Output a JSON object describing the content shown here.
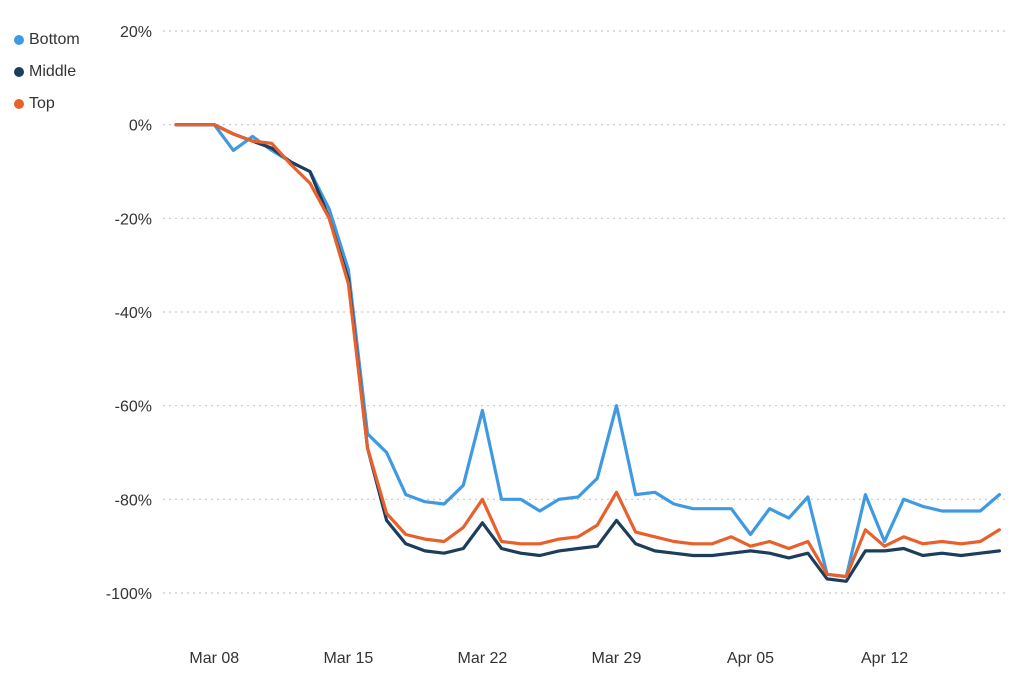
{
  "chart_data": {
    "type": "line",
    "title": "",
    "xlabel": "",
    "ylabel": "",
    "ylim": [
      -100,
      20
    ],
    "y_ticks": [
      20,
      0,
      -20,
      -40,
      -60,
      -80,
      -100
    ],
    "y_tick_labels": [
      "20%",
      "0%",
      "-20%",
      "-40%",
      "-60%",
      "-80%",
      "-100%"
    ],
    "x_start": "2020-03-06",
    "x_ticks": [
      {
        "date": "2020-03-08",
        "label": "Mar 08"
      },
      {
        "date": "2020-03-15",
        "label": "Mar 15"
      },
      {
        "date": "2020-03-22",
        "label": "Mar 22"
      },
      {
        "date": "2020-03-29",
        "label": "Mar 29"
      },
      {
        "date": "2020-04-05",
        "label": "Apr 05"
      },
      {
        "date": "2020-04-12",
        "label": "Apr 12"
      }
    ],
    "grid": true,
    "legend_position": "top-left",
    "series": [
      {
        "name": "Bottom",
        "color": "#3f9ae2",
        "values": [
          0,
          0,
          0,
          -5.5,
          -2.5,
          -5.5,
          -8,
          -10,
          -18,
          -31,
          -66,
          -70,
          -79,
          -80.5,
          -81,
          -77,
          -61,
          -80,
          -80,
          -82.5,
          -80,
          -79.5,
          -75.5,
          -60,
          -79,
          -78.5,
          -81,
          -82,
          -82,
          -82,
          -87.5,
          -82,
          -84,
          -79.5,
          -96,
          -96.5,
          -79,
          -89,
          -80,
          -81.5,
          -82.5,
          -82.5,
          -82.5,
          -79
        ]
      },
      {
        "name": "Middle",
        "color": "#1d3d5c",
        "values": [
          0,
          0,
          0,
          -2,
          -3.5,
          -5,
          -8,
          -10,
          -20,
          -33,
          -69,
          -84.5,
          -89.5,
          -91,
          -91.5,
          -90.5,
          -85,
          -90.5,
          -91.5,
          -92,
          -91,
          -90.5,
          -90,
          -84.5,
          -89.5,
          -91,
          -91.5,
          -92,
          -92,
          -91.5,
          -91,
          -91.5,
          -92.5,
          -91.5,
          -97,
          -97.5,
          -91,
          -91,
          -90.5,
          -92,
          -91.5,
          -92,
          -91.5,
          -91
        ]
      },
      {
        "name": "Top",
        "color": "#e8612c",
        "values": [
          0,
          0,
          0,
          -2,
          -3.5,
          -4,
          -8.5,
          -12.5,
          -20,
          -34,
          -69,
          -83,
          -87.5,
          -88.5,
          -89,
          -86,
          -80,
          -89,
          -89.5,
          -89.5,
          -88.5,
          -88,
          -85.5,
          -78.5,
          -87,
          -88,
          -89,
          -89.5,
          -89.5,
          -88,
          -90,
          -89,
          -90.5,
          -89,
          -96,
          -96.5,
          -86.5,
          -90,
          -88,
          -89.5,
          -89,
          -89.5,
          -89,
          -86.5
        ]
      }
    ]
  }
}
